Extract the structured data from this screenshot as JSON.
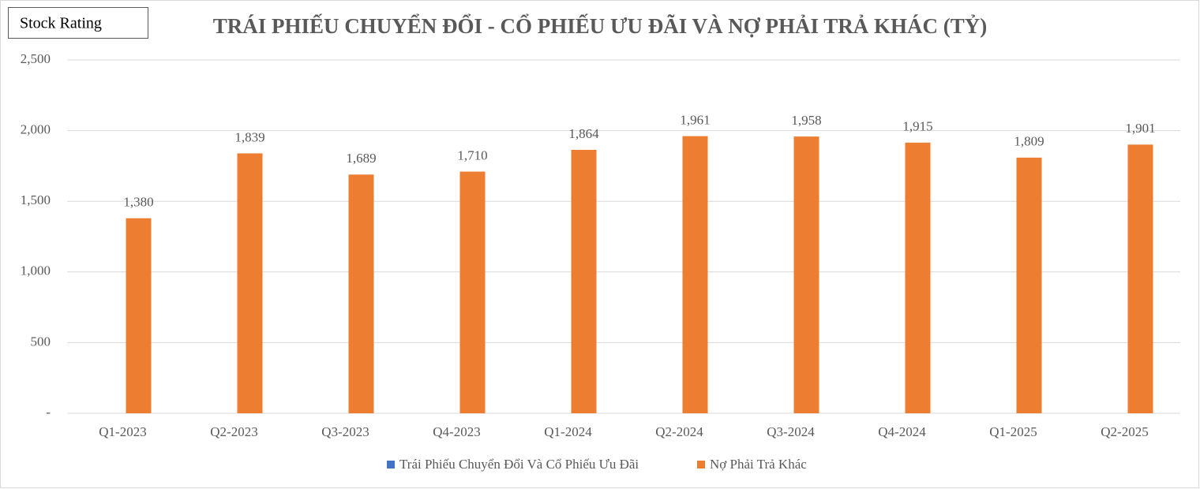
{
  "chart_data": {
    "type": "bar",
    "title": "TRÁI PHIẾU CHUYỂN ĐỔI - CỔ PHIẾU ƯU ĐÃI VÀ NỢ PHẢI TRẢ KHÁC (TỶ)",
    "annotation": "Stock Rating",
    "categories": [
      "Q1-2023",
      "Q2-2023",
      "Q3-2023",
      "Q4-2023",
      "Q1-2024",
      "Q2-2024",
      "Q3-2024",
      "Q4-2024",
      "Q1-2025",
      "Q2-2025"
    ],
    "series": [
      {
        "name": "Trái Phiếu Chuyển Đổi Và Cổ Phiếu Ưu Đãi",
        "color": "#4472c4",
        "values": [
          0,
          0,
          0,
          0,
          0,
          0,
          0,
          0,
          0,
          0
        ]
      },
      {
        "name": "Nợ Phải Trả Khác",
        "color": "#ed7d31",
        "values": [
          1380,
          1839,
          1689,
          1710,
          1864,
          1961,
          1958,
          1915,
          1809,
          1901
        ],
        "value_labels": [
          "1,380",
          "1,839",
          "1,689",
          "1,710",
          "1,864",
          "1,961",
          "1,958",
          "1,915",
          "1,809",
          "1,901"
        ]
      }
    ],
    "ylim": [
      0,
      2500
    ],
    "yticks": [
      {
        "value": 0,
        "label": "-"
      },
      {
        "value": 500,
        "label": "500"
      },
      {
        "value": 1000,
        "label": "1,000"
      },
      {
        "value": 1500,
        "label": "1,500"
      },
      {
        "value": 2000,
        "label": "2,000"
      },
      {
        "value": 2500,
        "label": "2,500"
      }
    ],
    "grid": true,
    "legend": "bottom"
  }
}
